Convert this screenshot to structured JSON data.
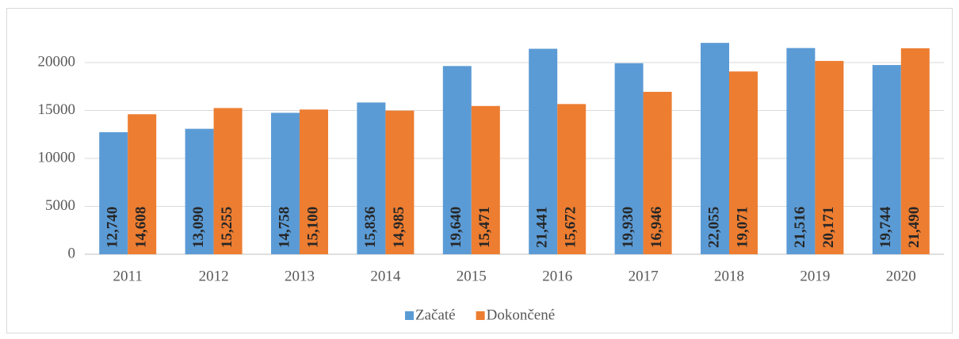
{
  "chart_data": {
    "type": "bar",
    "categories": [
      "2011",
      "2012",
      "2013",
      "2014",
      "2015",
      "2016",
      "2017",
      "2018",
      "2019",
      "2020"
    ],
    "series": [
      {
        "name": "Začaté",
        "color": "#5b9bd5",
        "values": [
          12740,
          13090,
          14758,
          15836,
          19640,
          21441,
          19930,
          22055,
          21516,
          19744
        ],
        "value_labels": [
          "12,740",
          "13,090",
          "14,758",
          "15,836",
          "19,640",
          "21,441",
          "19,930",
          "22,055",
          "21,516",
          "19,744"
        ]
      },
      {
        "name": "Dokončené",
        "color": "#ed7d31",
        "values": [
          14608,
          15255,
          15100,
          14985,
          15471,
          15672,
          16946,
          19071,
          20171,
          21490
        ],
        "value_labels": [
          "14,608",
          "15,255",
          "15,100",
          "14,985",
          "15,471",
          "15,672",
          "16,946",
          "19,071",
          "20,171",
          "21,490"
        ]
      }
    ],
    "ylim": [
      0,
      24000
    ],
    "yticks": [
      0,
      5000,
      10000,
      15000,
      20000
    ],
    "grid": true,
    "legend": "bottom"
  }
}
